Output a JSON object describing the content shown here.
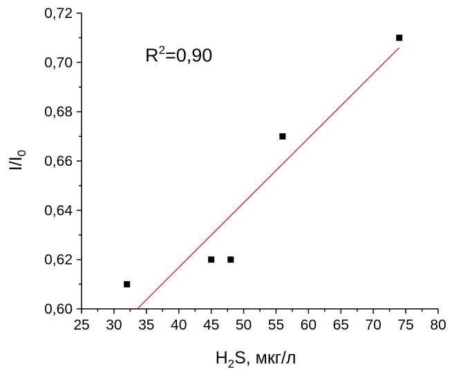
{
  "chart_data": {
    "type": "scatter",
    "title": "",
    "xlabel": {
      "base": "H",
      "sub": "2",
      "rest": "S, мкг/л"
    },
    "ylabel": {
      "base": "I/I",
      "sub": "0"
    },
    "xlim": [
      25,
      80
    ],
    "ylim": [
      0.6,
      0.72
    ],
    "xticks": [
      25,
      30,
      35,
      40,
      45,
      50,
      55,
      60,
      65,
      70,
      75,
      80
    ],
    "xtick_labels": [
      "25",
      "30",
      "35",
      "40",
      "45",
      "50",
      "55",
      "60",
      "65",
      "70",
      "75",
      "80"
    ],
    "yticks": [
      0.6,
      0.62,
      0.64,
      0.66,
      0.68,
      0.7,
      0.72
    ],
    "ytick_labels": [
      "0,60",
      "0,62",
      "0,64",
      "0,66",
      "0,68",
      "0,70",
      "0,72"
    ],
    "grid": false,
    "series": [
      {
        "type": "scatter",
        "marker": "square",
        "color": "#000000",
        "points": [
          {
            "x": 32,
            "y": 0.61
          },
          {
            "x": 45,
            "y": 0.62
          },
          {
            "x": 48,
            "y": 0.62
          },
          {
            "x": 56,
            "y": 0.67
          },
          {
            "x": 74,
            "y": 0.71
          }
        ]
      },
      {
        "type": "line",
        "color": "#e00000",
        "points": [
          {
            "x": 33.6,
            "y": 0.6
          },
          {
            "x": 74,
            "y": 0.706
          }
        ]
      }
    ],
    "annotation": {
      "base": "R",
      "sup": "2",
      "rest": "=0,90"
    }
  }
}
